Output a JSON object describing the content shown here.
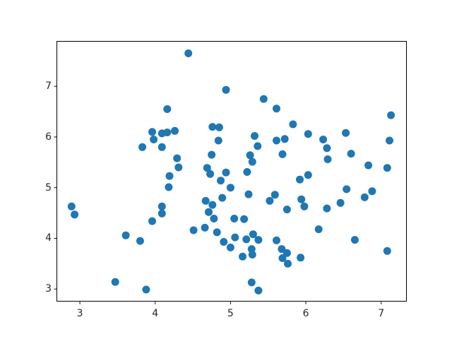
{
  "figure": {
    "background": "#ffffff",
    "plot_background": "#ffffff",
    "spine_color": "#000000",
    "tick_color": "#000000",
    "tick_label_color": "#262626"
  },
  "chart_data": {
    "type": "scatter",
    "title": "",
    "xlabel": "",
    "ylabel": "",
    "legend": null,
    "grid": false,
    "marker_color": "#1f77b4",
    "marker_radius_px": 5.5,
    "xlim": [
      2.69,
      7.34
    ],
    "ylim": [
      2.75,
      7.9
    ],
    "xticks": [
      "3",
      "4",
      "5",
      "6",
      "7"
    ],
    "yticks": [
      "3",
      "4",
      "5",
      "6",
      "7"
    ],
    "xtick_values": [
      3,
      4,
      5,
      6,
      7
    ],
    "ytick_values": [
      3,
      4,
      5,
      6,
      7
    ],
    "points": [
      [
        4.16,
        6.55
      ],
      [
        4.44,
        7.65
      ],
      [
        4.94,
        6.93
      ],
      [
        5.44,
        6.75
      ],
      [
        5.61,
        6.56
      ],
      [
        7.13,
        6.43
      ],
      [
        5.83,
        6.25
      ],
      [
        4.76,
        6.2
      ],
      [
        4.85,
        6.19
      ],
      [
        3.96,
        6.1
      ],
      [
        4.09,
        6.07
      ],
      [
        4.16,
        6.09
      ],
      [
        4.26,
        6.12
      ],
      [
        3.98,
        5.95
      ],
      [
        3.83,
        5.8
      ],
      [
        4.09,
        5.8
      ],
      [
        4.19,
        5.23
      ],
      [
        4.18,
        5.01
      ],
      [
        2.89,
        4.63
      ],
      [
        2.93,
        4.47
      ],
      [
        4.09,
        4.63
      ],
      [
        4.09,
        4.49
      ],
      [
        4.29,
        5.58
      ],
      [
        4.31,
        5.4
      ],
      [
        4.84,
        5.93
      ],
      [
        5.32,
        6.02
      ],
      [
        5.36,
        5.82
      ],
      [
        5.61,
        5.93
      ],
      [
        5.72,
        5.96
      ],
      [
        4.75,
        5.65
      ],
      [
        5.26,
        5.64
      ],
      [
        5.29,
        5.51
      ],
      [
        5.69,
        5.66
      ],
      [
        4.69,
        5.39
      ],
      [
        4.73,
        5.27
      ],
      [
        4.94,
        5.3
      ],
      [
        5.22,
        5.31
      ],
      [
        4.87,
        5.14
      ],
      [
        5.0,
        5.0
      ],
      [
        5.24,
        4.87
      ],
      [
        5.59,
        4.86
      ],
      [
        5.52,
        4.74
      ],
      [
        4.67,
        4.74
      ],
      [
        4.76,
        4.66
      ],
      [
        4.89,
        4.8
      ],
      [
        6.03,
        6.06
      ],
      [
        6.23,
        5.95
      ],
      [
        6.53,
        6.08
      ],
      [
        7.11,
        5.93
      ],
      [
        6.28,
        5.78
      ],
      [
        6.6,
        5.67
      ],
      [
        6.29,
        5.56
      ],
      [
        6.83,
        5.44
      ],
      [
        7.08,
        5.39
      ],
      [
        5.92,
        5.16
      ],
      [
        6.03,
        5.25
      ],
      [
        5.94,
        4.77
      ],
      [
        5.98,
        4.63
      ],
      [
        6.54,
        4.97
      ],
      [
        6.78,
        4.81
      ],
      [
        6.88,
        4.93
      ],
      [
        6.46,
        4.7
      ],
      [
        6.28,
        4.59
      ],
      [
        5.75,
        4.57
      ],
      [
        3.96,
        4.34
      ],
      [
        3.61,
        4.06
      ],
      [
        3.8,
        3.95
      ],
      [
        3.47,
        3.14
      ],
      [
        3.88,
        2.99
      ],
      [
        4.71,
        4.52
      ],
      [
        4.78,
        4.39
      ],
      [
        5.05,
        4.39
      ],
      [
        5.18,
        4.38
      ],
      [
        4.51,
        4.16
      ],
      [
        4.66,
        4.21
      ],
      [
        4.82,
        4.12
      ],
      [
        4.91,
        3.93
      ],
      [
        5.0,
        3.82
      ],
      [
        5.06,
        4.02
      ],
      [
        5.21,
        3.98
      ],
      [
        5.3,
        4.08
      ],
      [
        5.37,
        3.97
      ],
      [
        5.28,
        3.79
      ],
      [
        5.29,
        3.68
      ],
      [
        5.16,
        3.64
      ],
      [
        5.61,
        3.96
      ],
      [
        5.68,
        3.79
      ],
      [
        5.75,
        3.71
      ],
      [
        5.69,
        3.61
      ],
      [
        5.93,
        3.62
      ],
      [
        5.76,
        3.5
      ],
      [
        6.17,
        4.18
      ],
      [
        6.65,
        3.97
      ],
      [
        7.08,
        3.75
      ],
      [
        5.28,
        3.13
      ],
      [
        5.37,
        2.97
      ]
    ]
  }
}
